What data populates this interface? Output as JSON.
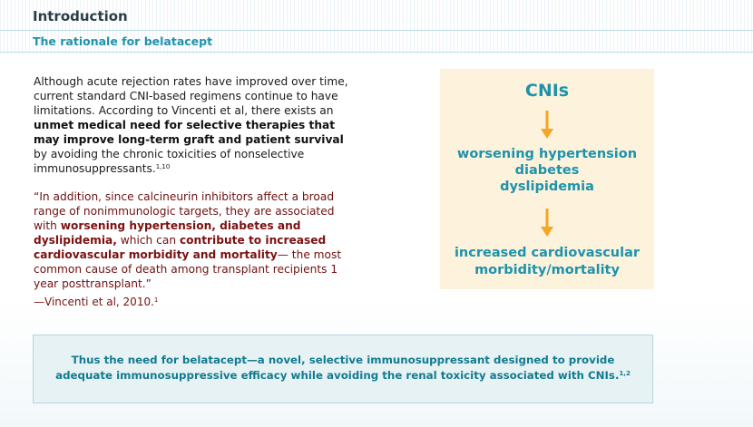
{
  "header": {
    "title": "Introduction",
    "subtitle": "The rationale for belatacept"
  },
  "body": {
    "p1_a": "Although acute rejection rates have improved over time, current standard CNI-based regimens continue to have limitations. According to Vincenti et al, there exists an ",
    "p1_bold": "unmet medical need for selective therapies that may improve long-term graft and patient survival",
    "p1_b": " by avoiding the chronic toxicities of nonselective immunosuppressants.",
    "p1_refs": "1,10"
  },
  "quote": {
    "q_a": "“In addition, since calcineurin inhibitors affect a broad range of nonimmunologic targets, they are associated with ",
    "q_bold1": "worsening hypertension, diabetes and dyslipidemia,",
    "q_b": " which can ",
    "q_bold2": "contribute to increased cardiovascular morbidity and mortality",
    "q_c": "— the most common cause of death among transplant recipients 1 year posttransplant.”",
    "attribution": "—Vincenti et al, 2010.",
    "attribution_ref": "1"
  },
  "diagram": {
    "top": "CNIs",
    "middle": [
      "worsening hypertension",
      "diabetes",
      "dyslipidemia"
    ],
    "bottom_line1": "increased cardiovascular",
    "bottom_line2": "morbidity/mortality",
    "arrow_color": "#f5a623",
    "text_color": "#1d93ab",
    "box_color": "#fdf2dc"
  },
  "callout": {
    "line1": "Thus the need for belatacept—a novel, selective immunosuppressant designed to provide",
    "line2": "adequate immunosuppressive efficacy while avoiding the renal toxicity associated with CNIs.",
    "refs": "1,2"
  }
}
